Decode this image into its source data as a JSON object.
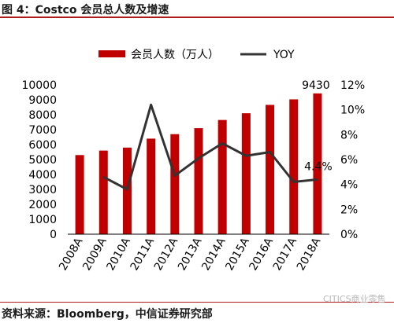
{
  "title": "图 4：Costco 会员总人数及增速",
  "source": "资料来源：Bloomberg，中信证券研究部",
  "watermark": "CITICS商业零售",
  "colors": {
    "bar": "#c00000",
    "line": "#333333",
    "rule": "#b01c1c"
  },
  "chart_data": {
    "type": "bar",
    "categories": [
      "2008A",
      "2009A",
      "2010A",
      "2011A",
      "2012A",
      "2013A",
      "2014A",
      "2015A",
      "2016A",
      "2017A",
      "2018A"
    ],
    "series": [
      {
        "name": "会员人数（万人）",
        "type": "bar",
        "axis": "left",
        "values": [
          5300,
          5600,
          5800,
          6400,
          6700,
          7100,
          7650,
          8100,
          8660,
          9030,
          9430
        ]
      },
      {
        "name": "YOY",
        "type": "line",
        "axis": "right",
        "values": [
          null,
          4.6,
          3.6,
          10.4,
          4.7,
          6.1,
          7.3,
          6.3,
          6.6,
          4.2,
          4.4
        ]
      }
    ],
    "left_axis": {
      "min": 0,
      "max": 10000,
      "ticks": [
        "0",
        "1000",
        "2000",
        "3000",
        "4000",
        "5000",
        "6000",
        "7000",
        "8000",
        "9000",
        "10000"
      ]
    },
    "right_axis": {
      "min": 0,
      "max": 12,
      "ticks": [
        "0%",
        "2%",
        "4%",
        "6%",
        "8%",
        "10%",
        "12%"
      ]
    },
    "data_labels": [
      {
        "series": 0,
        "index": 10,
        "text": "9430"
      },
      {
        "series": 1,
        "index": 10,
        "text": "4.4%"
      }
    ],
    "legend_position": "top"
  }
}
